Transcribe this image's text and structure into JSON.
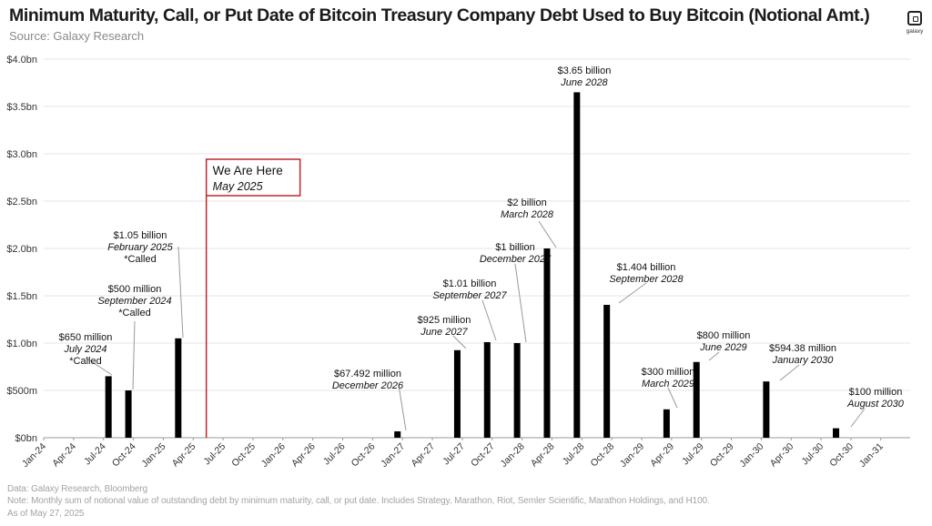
{
  "header": {
    "title": "Minimum Maturity, Call, or Put Date of Bitcoin Treasury Company Debt Used to Buy Bitcoin (Notional Amt.)",
    "subtitle": "Source: Galaxy Research"
  },
  "brand": {
    "logo_text": "galaxy",
    "logo_icon": "galaxy-logo-icon"
  },
  "footer": {
    "data_line": "Data: Galaxy Research, Bloomberg",
    "note_line": "Note: Monthly sum of  notional value of outstanding debt by minimum maturity, call, or put date. Includes Strategy, Marathon, Riot, Semler Scientific, Marathon Holdings, and H100.",
    "asof_line": "As of May 27, 2025"
  },
  "chart_data": {
    "type": "bar",
    "title": "Minimum Maturity, Call, or Put Date of Bitcoin Treasury Company Debt Used to Buy Bitcoin (Notional Amt.)",
    "xlabel": "",
    "ylabel": "",
    "ylim": [
      0,
      4.0
    ],
    "y_unit": "bn",
    "grid": true,
    "bar_color": "#000000",
    "marker_color": "#c0272d",
    "x_tick_labels": [
      "Jan-24",
      "Apr-24",
      "Jul-24",
      "Oct-24",
      "Jan-25",
      "Apr-25",
      "Jul-25",
      "Oct-25",
      "Jan-26",
      "Apr-26",
      "Jul-26",
      "Oct-26",
      "Jan-27",
      "Apr-27",
      "Jul-27",
      "Oct-27",
      "Jan-28",
      "Apr-28",
      "Jul-28",
      "Oct-28",
      "Jan-29",
      "Apr-29",
      "Jul-29",
      "Oct-29",
      "Jan-30",
      "Apr-30",
      "Jul-30",
      "Oct-30",
      "Jan-31"
    ],
    "y_tick_labels": [
      "$0bn",
      "$500m",
      "$1.0bn",
      "$1.5bn",
      "$2.0bn",
      "$2.5bn",
      "$3.0bn",
      "$3.5bn",
      "$4.0bn"
    ],
    "y_tick_values": [
      0,
      0.5,
      1.0,
      1.5,
      2.0,
      2.5,
      3.0,
      3.5,
      4.0
    ],
    "bars": [
      {
        "date": "July 2024",
        "value": 0.65,
        "label": "$650 million",
        "sublabel": "July 2024",
        "note": "*Called"
      },
      {
        "date": "September 2024",
        "value": 0.5,
        "label": "$500 million",
        "sublabel": "September 2024",
        "note": "*Called"
      },
      {
        "date": "February 2025",
        "value": 1.05,
        "label": "$1.05 billion",
        "sublabel": "February 2025",
        "note": "*Called"
      },
      {
        "date": "December 2026",
        "value": 0.067492,
        "label": "$67.492 million",
        "sublabel": "December 2026",
        "note": ""
      },
      {
        "date": "June 2027",
        "value": 0.925,
        "label": "$925 million",
        "sublabel": "June 2027",
        "note": ""
      },
      {
        "date": "September 2027",
        "value": 1.01,
        "label": "$1.01 billion",
        "sublabel": "September 2027",
        "note": ""
      },
      {
        "date": "December 2027",
        "value": 1.0,
        "label": "$1 billion",
        "sublabel": "December 2027",
        "note": ""
      },
      {
        "date": "March 2028",
        "value": 2.0,
        "label": "$2 billion",
        "sublabel": "March 2028",
        "note": ""
      },
      {
        "date": "June 2028",
        "value": 3.65,
        "label": "$3.65 billion",
        "sublabel": "June 2028",
        "note": ""
      },
      {
        "date": "September 2028",
        "value": 1.404,
        "label": "$1.404 billion",
        "sublabel": "September 2028",
        "note": ""
      },
      {
        "date": "March 2029",
        "value": 0.3,
        "label": "$300 million",
        "sublabel": "March 2029",
        "note": ""
      },
      {
        "date": "June 2029",
        "value": 0.8,
        "label": "$800 million",
        "sublabel": "June 2029",
        "note": ""
      },
      {
        "date": "January 2030",
        "value": 0.59438,
        "label": "$594.38 million",
        "sublabel": "January 2030",
        "note": ""
      },
      {
        "date": "August 2030",
        "value": 0.1,
        "label": "$100 million",
        "sublabel": "August 2030",
        "note": ""
      }
    ],
    "marker": {
      "date": "May 2025",
      "label": "We Are Here",
      "sublabel": "May 2025"
    }
  }
}
